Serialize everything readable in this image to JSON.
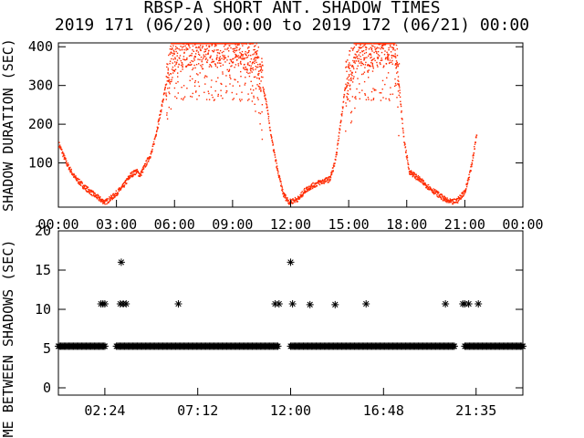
{
  "title": "RBSP-A SHORT ANT. SHADOW TIMES",
  "subtitle": "2019 171 (06/20) 00:00 to 2019 172 (06/21) 00:00",
  "colors": {
    "data_top": "#ff2a00",
    "axis": "#000000",
    "data_bottom": "#000000"
  },
  "chart_data": [
    {
      "type": "scatter",
      "ylabel": "SHADOW DURATION (SEC)",
      "xlabel": "",
      "x_unit": "hours since 2019-06-20 00:00",
      "xlim": [
        0,
        24
      ],
      "ylim": [
        0,
        410
      ],
      "x_tick_labels": [
        "00:00",
        "03:00",
        "06:00",
        "09:00",
        "12:00",
        "15:00",
        "18:00",
        "21:00",
        "00:00"
      ],
      "y_tick_labels": [
        "100",
        "200",
        "300",
        "400"
      ],
      "envelope": [
        [
          0.0,
          150
        ],
        [
          0.4,
          100
        ],
        [
          0.8,
          65
        ],
        [
          1.3,
          40
        ],
        [
          1.8,
          20
        ],
        [
          2.2,
          5
        ],
        [
          2.4,
          0
        ],
        [
          2.8,
          15
        ],
        [
          3.3,
          40
        ],
        [
          3.7,
          70
        ],
        [
          4.0,
          80
        ],
        [
          4.2,
          70
        ],
        [
          4.8,
          130
        ],
        [
          5.2,
          220
        ],
        [
          5.6,
          320
        ],
        [
          5.9,
          390
        ],
        [
          6.2,
          410
        ],
        [
          9.0,
          410
        ],
        [
          10.2,
          380
        ],
        [
          10.7,
          260
        ],
        [
          11.0,
          160
        ],
        [
          11.3,
          80
        ],
        [
          11.6,
          20
        ],
        [
          11.9,
          0
        ],
        [
          12.4,
          10
        ],
        [
          12.7,
          30
        ],
        [
          13.0,
          40
        ],
        [
          13.4,
          50
        ],
        [
          13.7,
          55
        ],
        [
          14.0,
          60
        ],
        [
          14.3,
          110
        ],
        [
          14.8,
          300
        ],
        [
          15.4,
          410
        ],
        [
          17.4,
          410
        ],
        [
          17.8,
          170
        ],
        [
          18.1,
          80
        ],
        [
          18.6,
          60
        ],
        [
          19.2,
          35
        ],
        [
          19.6,
          20
        ],
        [
          20.0,
          5
        ],
        [
          20.3,
          0
        ],
        [
          20.6,
          5
        ],
        [
          21.0,
          30
        ],
        [
          21.3,
          90
        ],
        [
          21.6,
          180
        ]
      ]
    },
    {
      "type": "scatter",
      "ylabel": "TIME BETWEEN SHADOWS (SEC)",
      "xlabel": "",
      "x_unit": "hours since 2019-06-20 00:00",
      "xlim": [
        0,
        24
      ],
      "ylim": [
        0,
        20
      ],
      "x_tick_labels": [
        "02:24",
        "07:12",
        "12:00",
        "16:48",
        "21:35"
      ],
      "y_tick_labels": [
        "0",
        "5",
        "10",
        "15",
        "20"
      ],
      "baseline": {
        "y": 5.3,
        "ranges": [
          [
            0.0,
            2.45
          ],
          [
            3.0,
            11.4
          ],
          [
            12.0,
            20.5
          ],
          [
            21.0,
            24.0
          ]
        ]
      },
      "points": [
        [
          2.2,
          10.7
        ],
        [
          2.3,
          10.7
        ],
        [
          2.4,
          10.7
        ],
        [
          3.25,
          16.0
        ],
        [
          3.2,
          10.7
        ],
        [
          3.35,
          10.7
        ],
        [
          3.5,
          10.7
        ],
        [
          6.2,
          10.7
        ],
        [
          11.2,
          10.7
        ],
        [
          11.4,
          10.7
        ],
        [
          12.0,
          16.0
        ],
        [
          12.1,
          10.7
        ],
        [
          13.0,
          10.6
        ],
        [
          14.3,
          10.6
        ],
        [
          15.9,
          10.7
        ],
        [
          20.0,
          10.7
        ],
        [
          20.9,
          10.7
        ],
        [
          21.0,
          10.7
        ],
        [
          21.2,
          10.7
        ],
        [
          21.7,
          10.7
        ]
      ]
    }
  ]
}
